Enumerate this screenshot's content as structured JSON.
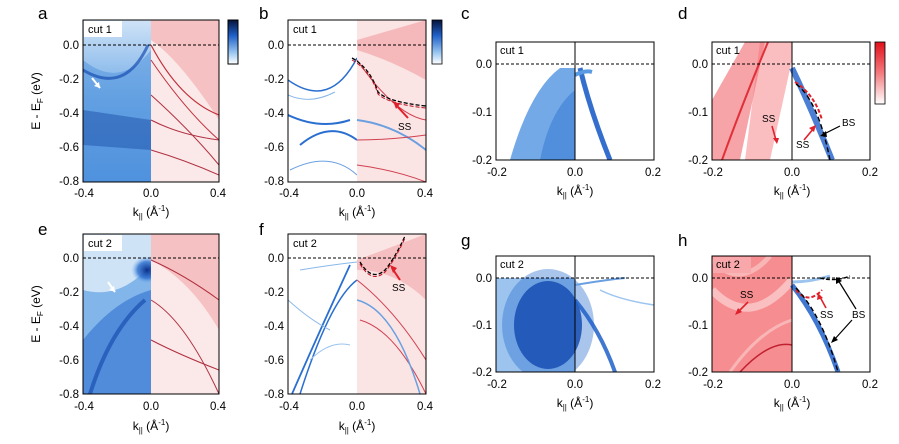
{
  "panels": [
    {
      "letter": "a",
      "cut": "cut 1"
    },
    {
      "letter": "b",
      "cut": "cut 1"
    },
    {
      "letter": "c",
      "cut": "cut 1"
    },
    {
      "letter": "d",
      "cut": "cut 1"
    },
    {
      "letter": "e",
      "cut": "cut 2"
    },
    {
      "letter": "f",
      "cut": "cut 2"
    },
    {
      "letter": "g",
      "cut": "cut 2"
    },
    {
      "letter": "h",
      "cut": "cut 2"
    }
  ],
  "axes": {
    "ylabel_main": "E - E",
    "ylabel_sub": "F",
    "ylabel_unit": " (eV)",
    "xlabel_main": "k",
    "xlabel_sub": "||",
    "xlabel_unit": " (Å",
    "xlabel_exp": "-1",
    "xlabel_close": ")",
    "wide_x_ticks": [
      "-0.4",
      "0.0",
      "0.4"
    ],
    "wide_y_ticks": [
      "0.0",
      "-0.2",
      "-0.4",
      "-0.6",
      "-0.8"
    ],
    "narrow_x_ticks": [
      "-0.2",
      "0.0",
      "0.2"
    ],
    "narrow_y_ticks": [
      "0.0",
      "-0.1",
      "-0.2"
    ]
  },
  "annotations": {
    "ss": "SS",
    "bs": "BS"
  },
  "colors": {
    "arpes_blue": "#1f6fd0",
    "calc_red": "#e8444a",
    "ss_arrow": "#e0202a"
  }
}
